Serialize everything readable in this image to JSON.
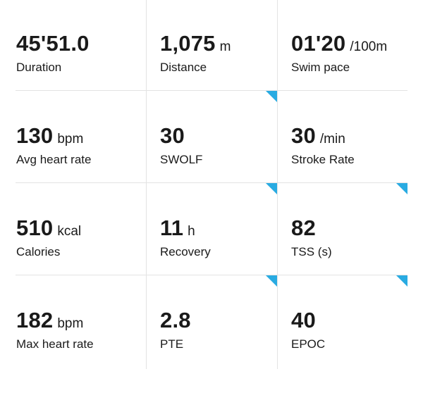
{
  "accent_color": "#29abe2",
  "metrics": [
    {
      "value": "45'51.0",
      "unit": "",
      "label": "Duration",
      "selectable": false
    },
    {
      "value": "1,075",
      "unit": "m",
      "label": "Distance",
      "selectable": false
    },
    {
      "value": "01'20",
      "unit": "/100m",
      "label": "Swim pace",
      "selectable": false
    },
    {
      "value": "130",
      "unit": "bpm",
      "label": "Avg heart rate",
      "selectable": false
    },
    {
      "value": "30",
      "unit": "",
      "label": "SWOLF",
      "selectable": true
    },
    {
      "value": "30",
      "unit": "/min",
      "label": "Stroke Rate",
      "selectable": false
    },
    {
      "value": "510",
      "unit": "kcal",
      "label": "Calories",
      "selectable": false
    },
    {
      "value": "11",
      "unit": "h",
      "label": "Recovery",
      "selectable": true
    },
    {
      "value": "82",
      "unit": "",
      "label": "TSS (s)",
      "selectable": true
    },
    {
      "value": "182",
      "unit": "bpm",
      "label": "Max heart rate",
      "selectable": false
    },
    {
      "value": "2.8",
      "unit": "",
      "label": "PTE",
      "selectable": true
    },
    {
      "value": "40",
      "unit": "",
      "label": "EPOC",
      "selectable": true
    }
  ]
}
